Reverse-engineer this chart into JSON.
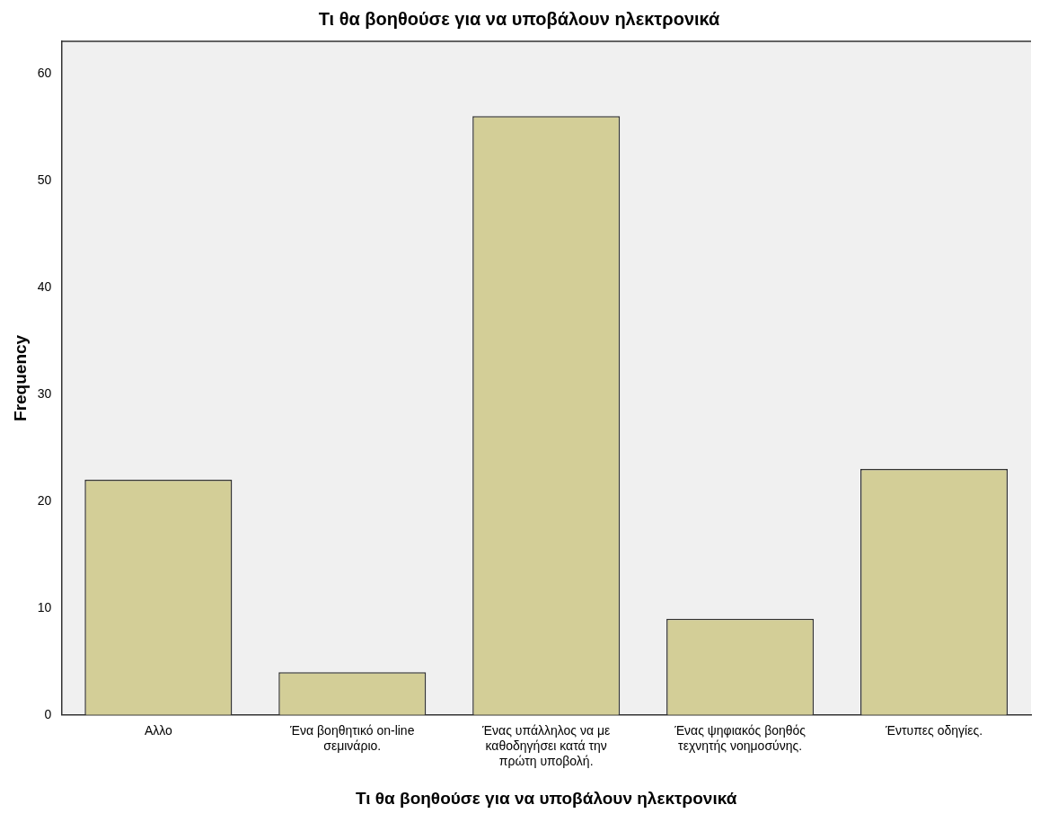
{
  "chart_data": {
    "type": "bar",
    "title": "Τι θα βοηθούσε για να υποβάλουν ηλεκτρονικά",
    "xlabel": "Τι θα βοηθούσε για να υποβάλουν ηλεκτρονικά",
    "ylabel": "Frequency",
    "categories": [
      "Αλλο",
      "Ένα βοηθητικό on-line σεμινάριο.",
      "Ένας υπάλληλος να με καθοδηγήσει κατά την πρώτη υποβολή.",
      "Ένας ψηφιακός βοηθός τεχνητής νοημοσύνης.",
      "Έντυπες οδηγίες."
    ],
    "values": [
      22,
      4,
      56,
      9,
      23
    ],
    "color": "#d3ce97",
    "ylim": [
      0,
      63
    ],
    "yticks": [
      0,
      10,
      20,
      30,
      40,
      50,
      60
    ],
    "grid": false,
    "legend": false
  }
}
